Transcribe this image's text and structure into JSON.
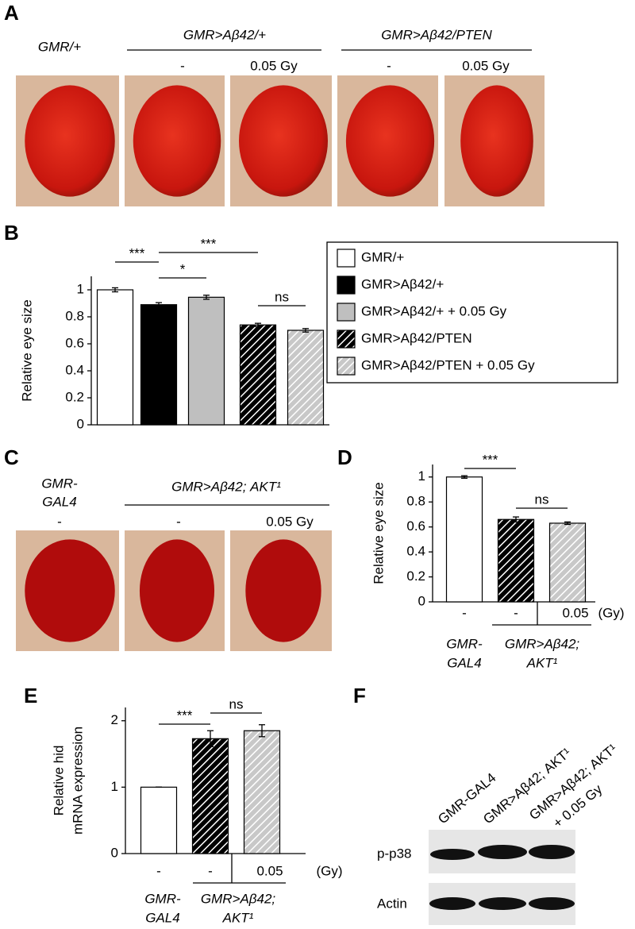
{
  "panel_a": {
    "letter": "A",
    "control": "GMR/+",
    "groups": [
      "GMR>Aβ42/+",
      "GMR>Aβ42/PTEN"
    ],
    "doses": [
      "-",
      "0.05 Gy",
      "-",
      "0.05 Gy"
    ]
  },
  "panel_c": {
    "letter": "C",
    "control": [
      "GMR-",
      "GAL4"
    ],
    "control_dose": "-",
    "group": "GMR>Aβ42; AKT¹",
    "doses": [
      "-",
      "0.05 Gy"
    ]
  },
  "panel_f": {
    "letter": "F",
    "lanes": [
      [
        "GMR-GAL4"
      ],
      [
        "GMR>Aβ42; AKT¹"
      ],
      [
        "GMR>Aβ42; AKT¹",
        "+ 0.05 Gy"
      ]
    ],
    "rows": [
      "p-p38",
      "Actin"
    ]
  },
  "chart_data": [
    {
      "type": "bar",
      "letter": "B",
      "ylabel": [
        "Relative eye size"
      ],
      "ylim": [
        0,
        1.1
      ],
      "yticks": [
        0,
        0.2,
        0.4,
        0.6,
        0.8,
        1
      ],
      "series": [
        {
          "name": "GMR/+",
          "color": "#ffffff",
          "values": [
            1.0
          ],
          "errors": [
            0.015
          ]
        },
        {
          "name": "GMR>Aβ42/+",
          "color": "#000000",
          "values": [
            0.89
          ],
          "errors": [
            0.015
          ]
        },
        {
          "name": "GMR>Aβ42/+ + 0.05 Gy",
          "color": "#bfbfbf",
          "values": [
            0.945
          ],
          "errors": [
            0.015
          ]
        },
        {
          "name": "GMR>Aβ42/PTEN",
          "color": "#000000",
          "hatch_color": "#ffffff",
          "values": [
            0.74
          ],
          "errors": [
            0.012
          ]
        },
        {
          "name": "GMR>Aβ42/PTEN + 0.05 Gy",
          "color": "#c8c8c8",
          "hatch_color": "#ffffff",
          "values": [
            0.7
          ],
          "errors": [
            0.013
          ]
        }
      ],
      "annotations": [
        "***",
        "*",
        "***",
        "ns"
      ]
    },
    {
      "type": "bar",
      "letter": "D",
      "ylabel": [
        "Relative eye size"
      ],
      "ylim": [
        0,
        1.1
      ],
      "yticks": [
        0,
        0.2,
        0.4,
        0.6,
        0.8,
        1
      ],
      "categories": [
        "-",
        "-",
        "0.05"
      ],
      "x_unit": "(Gy)",
      "groups": [
        [
          "GMR-",
          "GAL4"
        ],
        [
          "GMR>Aβ42;",
          "AKT¹"
        ]
      ],
      "values": [
        1.0,
        0.66,
        0.63
      ],
      "errors": [
        0.01,
        0.02,
        0.01
      ],
      "colors": [
        "#ffffff",
        "#000000",
        "#c8c8c8"
      ],
      "hatch_colors": [
        null,
        "#ffffff",
        "#ffffff"
      ],
      "annotations": [
        "***",
        "ns"
      ]
    },
    {
      "type": "bar",
      "letter": "E",
      "ylabel": [
        "Relative hid",
        "mRNA expression"
      ],
      "ylim": [
        0,
        2.2
      ],
      "yticks": [
        0,
        1,
        2
      ],
      "categories": [
        "-",
        "-",
        "0.05"
      ],
      "x_unit": "(Gy)",
      "groups": [
        [
          "GMR-",
          "GAL4"
        ],
        [
          "GMR>Aβ42;",
          "AKT¹"
        ]
      ],
      "values": [
        1.0,
        1.73,
        1.85
      ],
      "errors": [
        0,
        0.12,
        0.09
      ],
      "colors": [
        "#ffffff",
        "#000000",
        "#c8c8c8"
      ],
      "hatch_colors": [
        null,
        "#ffffff",
        "#ffffff"
      ],
      "annotations": [
        "***",
        "ns"
      ]
    }
  ]
}
